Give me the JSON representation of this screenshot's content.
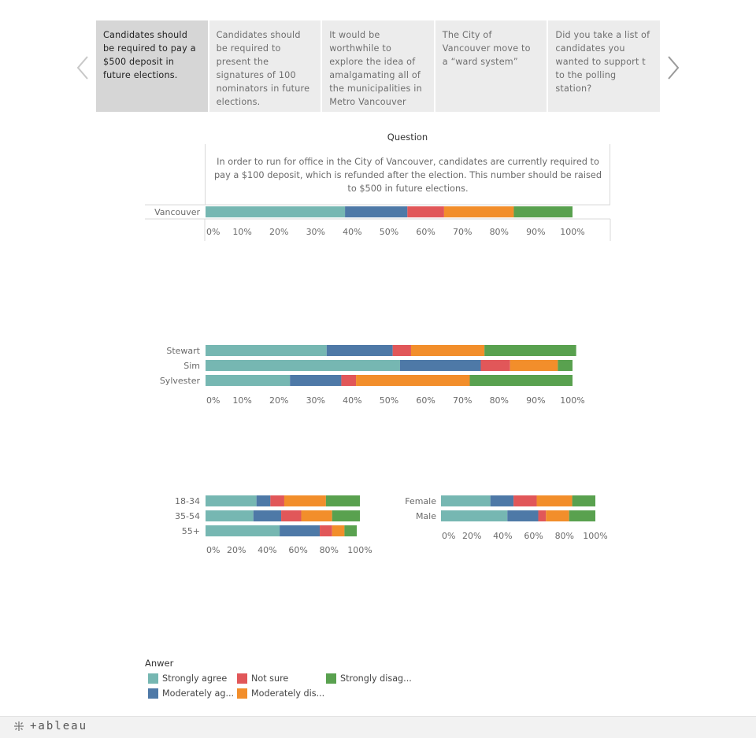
{
  "tabs": [
    {
      "label": "Candidates should be required to pay a $500 deposit in future elections."
    },
    {
      "label": "Candidates should be required to present the signatures of 100 nominators in future elections."
    },
    {
      "label": "It would be worthwhile to explore the idea of amalgamating all of the municipalities in Metro Vancouver"
    },
    {
      "label": "The City of Vancouver move to a “ward system”"
    },
    {
      "label": "Did you take a list of candidates you wanted to support t to the polling station?"
    }
  ],
  "question_title": "Question",
  "question_text": "In order to run for office in the City of Vancouver, candidates are currently required to pay a $100 deposit, which is refunded after the election. This number should be raised to $500 in future elections.",
  "colors": {
    "Strongly agree": "#76b7b2",
    "Moderately agree": "#4e79a7",
    "Not sure": "#e15759",
    "Moderately disagree": "#f28e2b",
    "Strongly disagree": "#59a14f"
  },
  "legend": {
    "title": "Anwer",
    "items": [
      {
        "label": "Strongly agree",
        "key": "Strongly agree"
      },
      {
        "label": "Moderately ag...",
        "key": "Moderately agree"
      },
      {
        "label": "Not sure",
        "key": "Not sure"
      },
      {
        "label": "Moderately dis...",
        "key": "Moderately disagree"
      },
      {
        "label": "Strongly disag...",
        "key": "Strongly disagree"
      }
    ]
  },
  "footer": {
    "logo_text": "+ableau"
  },
  "chart_data": [
    {
      "type": "bar",
      "orientation": "horizontal",
      "stacked": true,
      "categories": [
        "Vancouver"
      ],
      "series": [
        {
          "name": "Strongly agree",
          "values": [
            38
          ]
        },
        {
          "name": "Moderately agree",
          "values": [
            17
          ]
        },
        {
          "name": "Not sure",
          "values": [
            10
          ]
        },
        {
          "name": "Moderately disagree",
          "values": [
            19
          ]
        },
        {
          "name": "Strongly disagree",
          "values": [
            16
          ]
        }
      ],
      "xlim": [
        0,
        105
      ],
      "xticks": [
        "0%",
        "10%",
        "20%",
        "30%",
        "40%",
        "50%",
        "60%",
        "70%",
        "80%",
        "90%",
        "100%"
      ]
    },
    {
      "type": "bar",
      "orientation": "horizontal",
      "stacked": true,
      "categories": [
        "Stewart",
        "Sim",
        "Sylvester"
      ],
      "series": [
        {
          "name": "Strongly agree",
          "values": [
            33,
            53,
            23
          ]
        },
        {
          "name": "Moderately agree",
          "values": [
            18,
            22,
            14
          ]
        },
        {
          "name": "Not sure",
          "values": [
            5,
            8,
            4
          ]
        },
        {
          "name": "Moderately disagree",
          "values": [
            20,
            13,
            31
          ]
        },
        {
          "name": "Strongly disagree",
          "values": [
            25,
            4,
            28
          ]
        }
      ],
      "xlim": [
        0,
        105
      ],
      "xticks": [
        "0%",
        "10%",
        "20%",
        "30%",
        "40%",
        "50%",
        "60%",
        "70%",
        "80%",
        "90%",
        "100%"
      ]
    },
    {
      "type": "bar",
      "orientation": "horizontal",
      "stacked": true,
      "categories": [
        "18-34",
        "35-54",
        "55+"
      ],
      "series": [
        {
          "name": "Strongly agree",
          "values": [
            33,
            31,
            48
          ]
        },
        {
          "name": "Moderately agree",
          "values": [
            9,
            18,
            26
          ]
        },
        {
          "name": "Not sure",
          "values": [
            9,
            13,
            8
          ]
        },
        {
          "name": "Moderately disagree",
          "values": [
            27,
            20,
            8
          ]
        },
        {
          "name": "Strongly disagree",
          "values": [
            22,
            18,
            8
          ]
        }
      ],
      "xlim": [
        0,
        105
      ],
      "xticks": [
        "0%",
        "20%",
        "40%",
        "60%",
        "80%",
        "100%"
      ]
    },
    {
      "type": "bar",
      "orientation": "horizontal",
      "stacked": true,
      "categories": [
        "Female",
        "Male"
      ],
      "series": [
        {
          "name": "Strongly agree",
          "values": [
            32,
            43
          ]
        },
        {
          "name": "Moderately agree",
          "values": [
            15,
            20
          ]
        },
        {
          "name": "Not sure",
          "values": [
            15,
            5
          ]
        },
        {
          "name": "Moderately disagree",
          "values": [
            23,
            15
          ]
        },
        {
          "name": "Strongly disagree",
          "values": [
            15,
            17
          ]
        }
      ],
      "xlim": [
        0,
        105
      ],
      "xticks": [
        "0%",
        "20%",
        "40%",
        "60%",
        "80%",
        "100%"
      ]
    }
  ]
}
